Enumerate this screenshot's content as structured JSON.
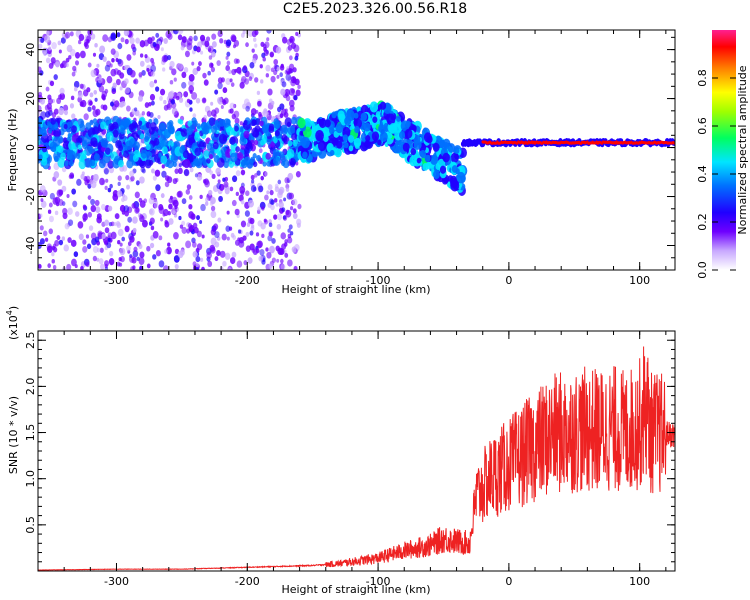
{
  "title": "C2E5.2023.326.00.56.R18",
  "chart_data": [
    {
      "type": "heatmap",
      "xlabel": "Height of straight line (km)",
      "ylabel": "Frequency (Hz)",
      "xlim": [
        -360,
        127
      ],
      "ylim": [
        -50,
        48
      ],
      "xticks": [
        -300,
        -200,
        -100,
        0,
        100
      ],
      "yticks": [
        -40,
        -20,
        0,
        20,
        40
      ],
      "colorbar": {
        "label": "Normalized spectral amplitude",
        "range": [
          0,
          1
        ],
        "ticks": [
          "0.0",
          "0.2",
          "0.4",
          "0.6",
          "0.8"
        ],
        "colormap": [
          "#ffffff",
          "#b48cff",
          "#5a00ff",
          "#0000ff",
          "#00e5ff",
          "#00ff00",
          "#ffff00",
          "#ff8000",
          "#ff0000",
          "#ff1a8c"
        ]
      },
      "description_of_features": {
        "scatter_region": [
          -360,
          -160
        ],
        "main_band_center_freq": 2,
        "drift_region": [
          -160,
          -35
        ],
        "drift_peak_freq": 10,
        "drift_end_freq": -10,
        "steady_line_region": [
          -35,
          127
        ],
        "steady_line_freq": 2
      }
    },
    {
      "type": "line",
      "xlabel": "Height of straight line (km)",
      "ylabel": "SNR (10 * v/v)",
      "yscale_label": "(x10",
      "yscale_exp": "4",
      "xlim": [
        -360,
        127
      ],
      "ylim": [
        0,
        2.6
      ],
      "xticks": [
        -300,
        -200,
        -100,
        0,
        100
      ],
      "yticks": [
        "0.5",
        "1.0",
        "1.5",
        "2.0",
        "2.5"
      ],
      "series": [
        {
          "color": "#ee2222",
          "x": [
            -360,
            -300,
            -250,
            -200,
            -150,
            -130,
            -110,
            -100,
            -80,
            -60,
            -50,
            -40,
            -30,
            -25,
            -20,
            -15,
            -10,
            -5,
            0,
            10,
            20,
            30,
            40,
            50,
            60,
            70,
            80,
            90,
            100,
            105,
            108,
            112,
            120,
            127
          ],
          "y": [
            0.01,
            0.02,
            0.02,
            0.04,
            0.06,
            0.08,
            0.12,
            0.14,
            0.22,
            0.28,
            0.35,
            0.32,
            0.3,
            0.8,
            0.9,
            1.0,
            1.05,
            1.1,
            1.15,
            1.25,
            1.35,
            1.45,
            1.5,
            1.52,
            1.53,
            1.52,
            1.55,
            1.5,
            1.6,
            1.8,
            1.5,
            1.5,
            1.48,
            1.48
          ]
        }
      ]
    }
  ]
}
